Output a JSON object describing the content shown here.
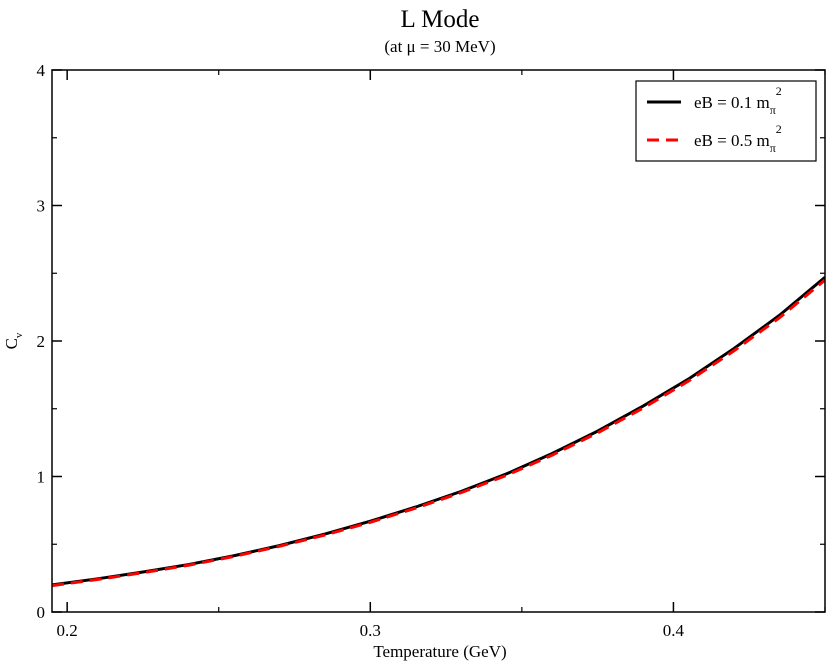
{
  "chart_data": {
    "type": "line",
    "title": "L Mode",
    "subtitle": "(at μ = 30 MeV)",
    "xlabel": "Temperature (GeV)",
    "ylabel": "C",
    "ylabel_sub": "v",
    "xlim": [
      0.195,
      0.45
    ],
    "ylim": [
      0,
      4
    ],
    "xticks": [
      0.2,
      0.3,
      0.4
    ],
    "xtick_labels": [
      "0.2",
      "0.3",
      "0.4"
    ],
    "yticks": [
      0,
      1,
      2,
      3,
      4
    ],
    "ytick_labels": [
      "0",
      "1",
      "2",
      "3",
      "4"
    ],
    "grid": false,
    "legend_position": "top-right",
    "series": [
      {
        "name": "eB = 0.1 m",
        "name_sub": "π",
        "name_sup": "2",
        "color": "#000000",
        "dash": "solid",
        "x": [
          0.195,
          0.21,
          0.225,
          0.24,
          0.255,
          0.27,
          0.285,
          0.3,
          0.315,
          0.33,
          0.345,
          0.36,
          0.375,
          0.39,
          0.405,
          0.42,
          0.435,
          0.45
        ],
        "y": [
          0.2,
          0.245,
          0.295,
          0.35,
          0.415,
          0.49,
          0.575,
          0.67,
          0.775,
          0.89,
          1.02,
          1.17,
          1.335,
          1.52,
          1.72,
          1.945,
          2.19,
          2.47
        ]
      },
      {
        "name": "eB = 0.5 m",
        "name_sub": "π",
        "name_sup": "2",
        "color": "#ff0000",
        "dash": "dashed",
        "x": [
          0.195,
          0.21,
          0.225,
          0.24,
          0.255,
          0.27,
          0.285,
          0.3,
          0.315,
          0.33,
          0.345,
          0.36,
          0.375,
          0.39,
          0.405,
          0.42,
          0.435,
          0.45
        ],
        "y": [
          0.195,
          0.24,
          0.29,
          0.345,
          0.41,
          0.485,
          0.568,
          0.662,
          0.767,
          0.881,
          1.009,
          1.158,
          1.322,
          1.505,
          1.705,
          1.928,
          2.172,
          2.45
        ]
      }
    ]
  }
}
